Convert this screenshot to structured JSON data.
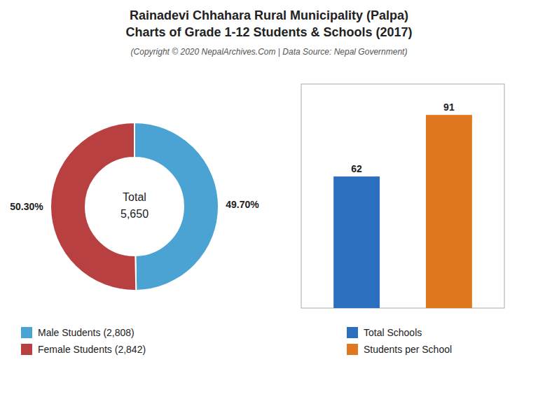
{
  "chart_data": [
    {
      "type": "donut",
      "title": [
        "Rainadevi Chhahara Rural Municipality (Palpa)",
        "Charts of Grade 1-12 Students & Schools (2017)"
      ],
      "subtitle": "(Copyright © 2020 NepalArchives.Com | Data Source: Nepal Government)",
      "categories": [
        "Male Students (2,808)",
        "Female Students (2,842)"
      ],
      "values": [
        49.7,
        50.3
      ],
      "value_labels": [
        "49.70%",
        "50.30%"
      ],
      "data_labels": true,
      "colors": [
        "#4ba3d3",
        "#b94040"
      ],
      "annotations": [
        "Total",
        "5,650"
      ],
      "legend": "bottom-left"
    },
    {
      "type": "bar",
      "categories": [
        "Total Schools",
        "Students per School"
      ],
      "values": [
        62,
        91
      ],
      "colors": [
        "#2c6fbe",
        "#e07820"
      ],
      "ylim": [
        0,
        105.56
      ],
      "data_labels": true,
      "tick_labels": false,
      "legend": "bottom"
    }
  ]
}
